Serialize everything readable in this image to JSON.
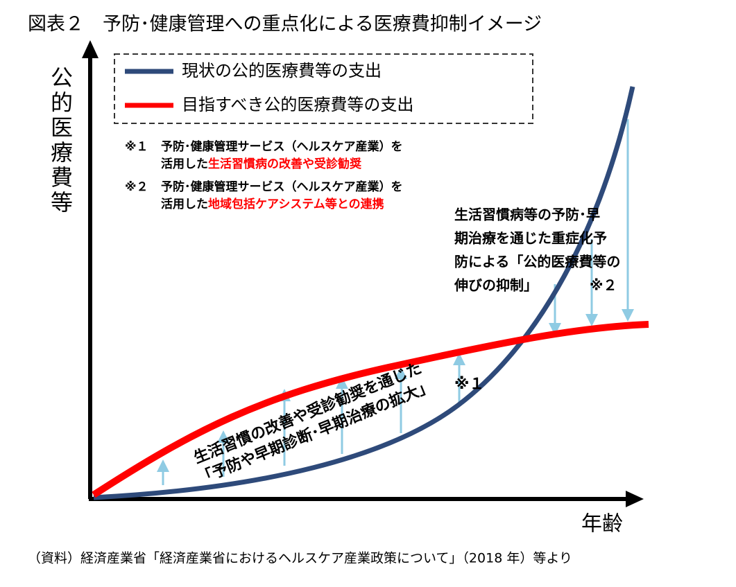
{
  "title": "図表２　予防･健康管理への重点化による医療費抑制イメージ",
  "y_axis_label": "公的医療費等",
  "x_axis_label": "年齢",
  "legend": [
    {
      "label": "現状の公的医療費等の支出",
      "color": "#2e4a7a"
    },
    {
      "label": "目指すべき公的医療費等の支出",
      "color": "#ff0000"
    }
  ],
  "notes": [
    {
      "mark": "※１",
      "line1": "予防･健康管理サービス（ヘルスケア産業）を",
      "line2_plain": "活用した",
      "line2_highlight": "生活習慣病の改善や受診勧奨"
    },
    {
      "mark": "※２",
      "line1": "予防･健康管理サービス（ヘルスケア産業）を",
      "line2_plain": "活用した",
      "line2_highlight": "地域包括ケアシステム等との連携"
    }
  ],
  "annotation_upper": {
    "lines": [
      "生活習慣病等の予防･早",
      "期治療を通じた重症化予",
      "防による「公的医療費等の",
      "伸びの抑制」"
    ],
    "mark": "※２"
  },
  "annotation_lower": {
    "lines": [
      "生活習慣の改善や受診勧奨を通じた",
      "「予防や早期診断･早期治療の拡大」"
    ],
    "mark": "※１"
  },
  "source": "（資料）経済産業省「経済産業省におけるヘルスケア産業政策について」（2018 年）等より"
}
